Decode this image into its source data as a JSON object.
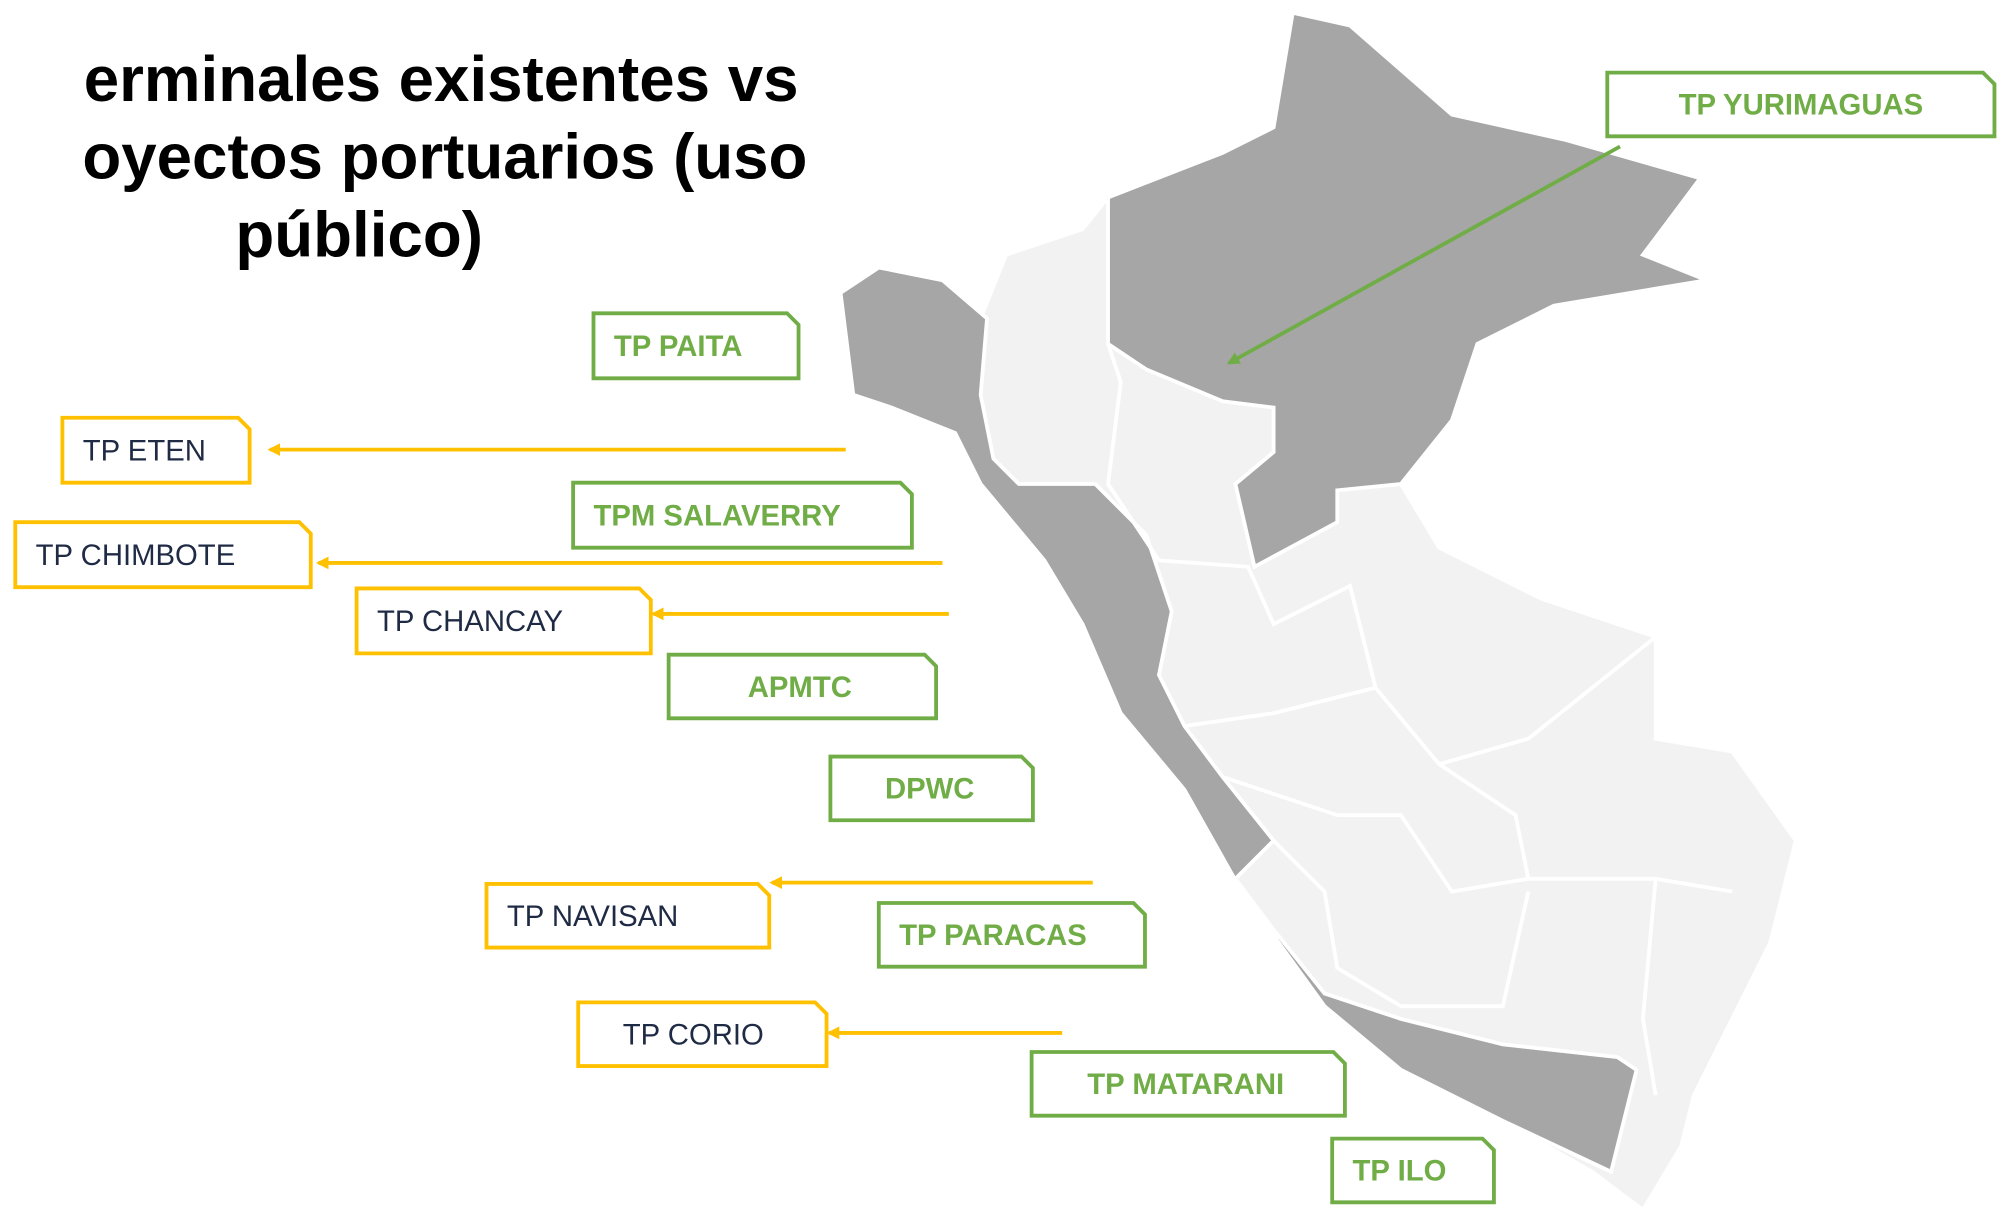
{
  "title": {
    "lines": [
      "erminales existentes vs",
      "oyectos portuarios (uso",
      "público)"
    ]
  },
  "existing_terminals": {
    "color": "#70ad47",
    "labels": [
      "TP YURIMAGUAS",
      "TP PAITA",
      "TPM SALAVERRY",
      "APMTC",
      "DPWC",
      "TP PARACAS",
      "TP MATARANI",
      "TP ILO"
    ]
  },
  "port_projects": {
    "color": "#ffc000",
    "labels": [
      "TP ETEN",
      "TP CHIMBOTE",
      "TP CHANCAY",
      "TP NAVISAN",
      "TP CORIO"
    ]
  }
}
